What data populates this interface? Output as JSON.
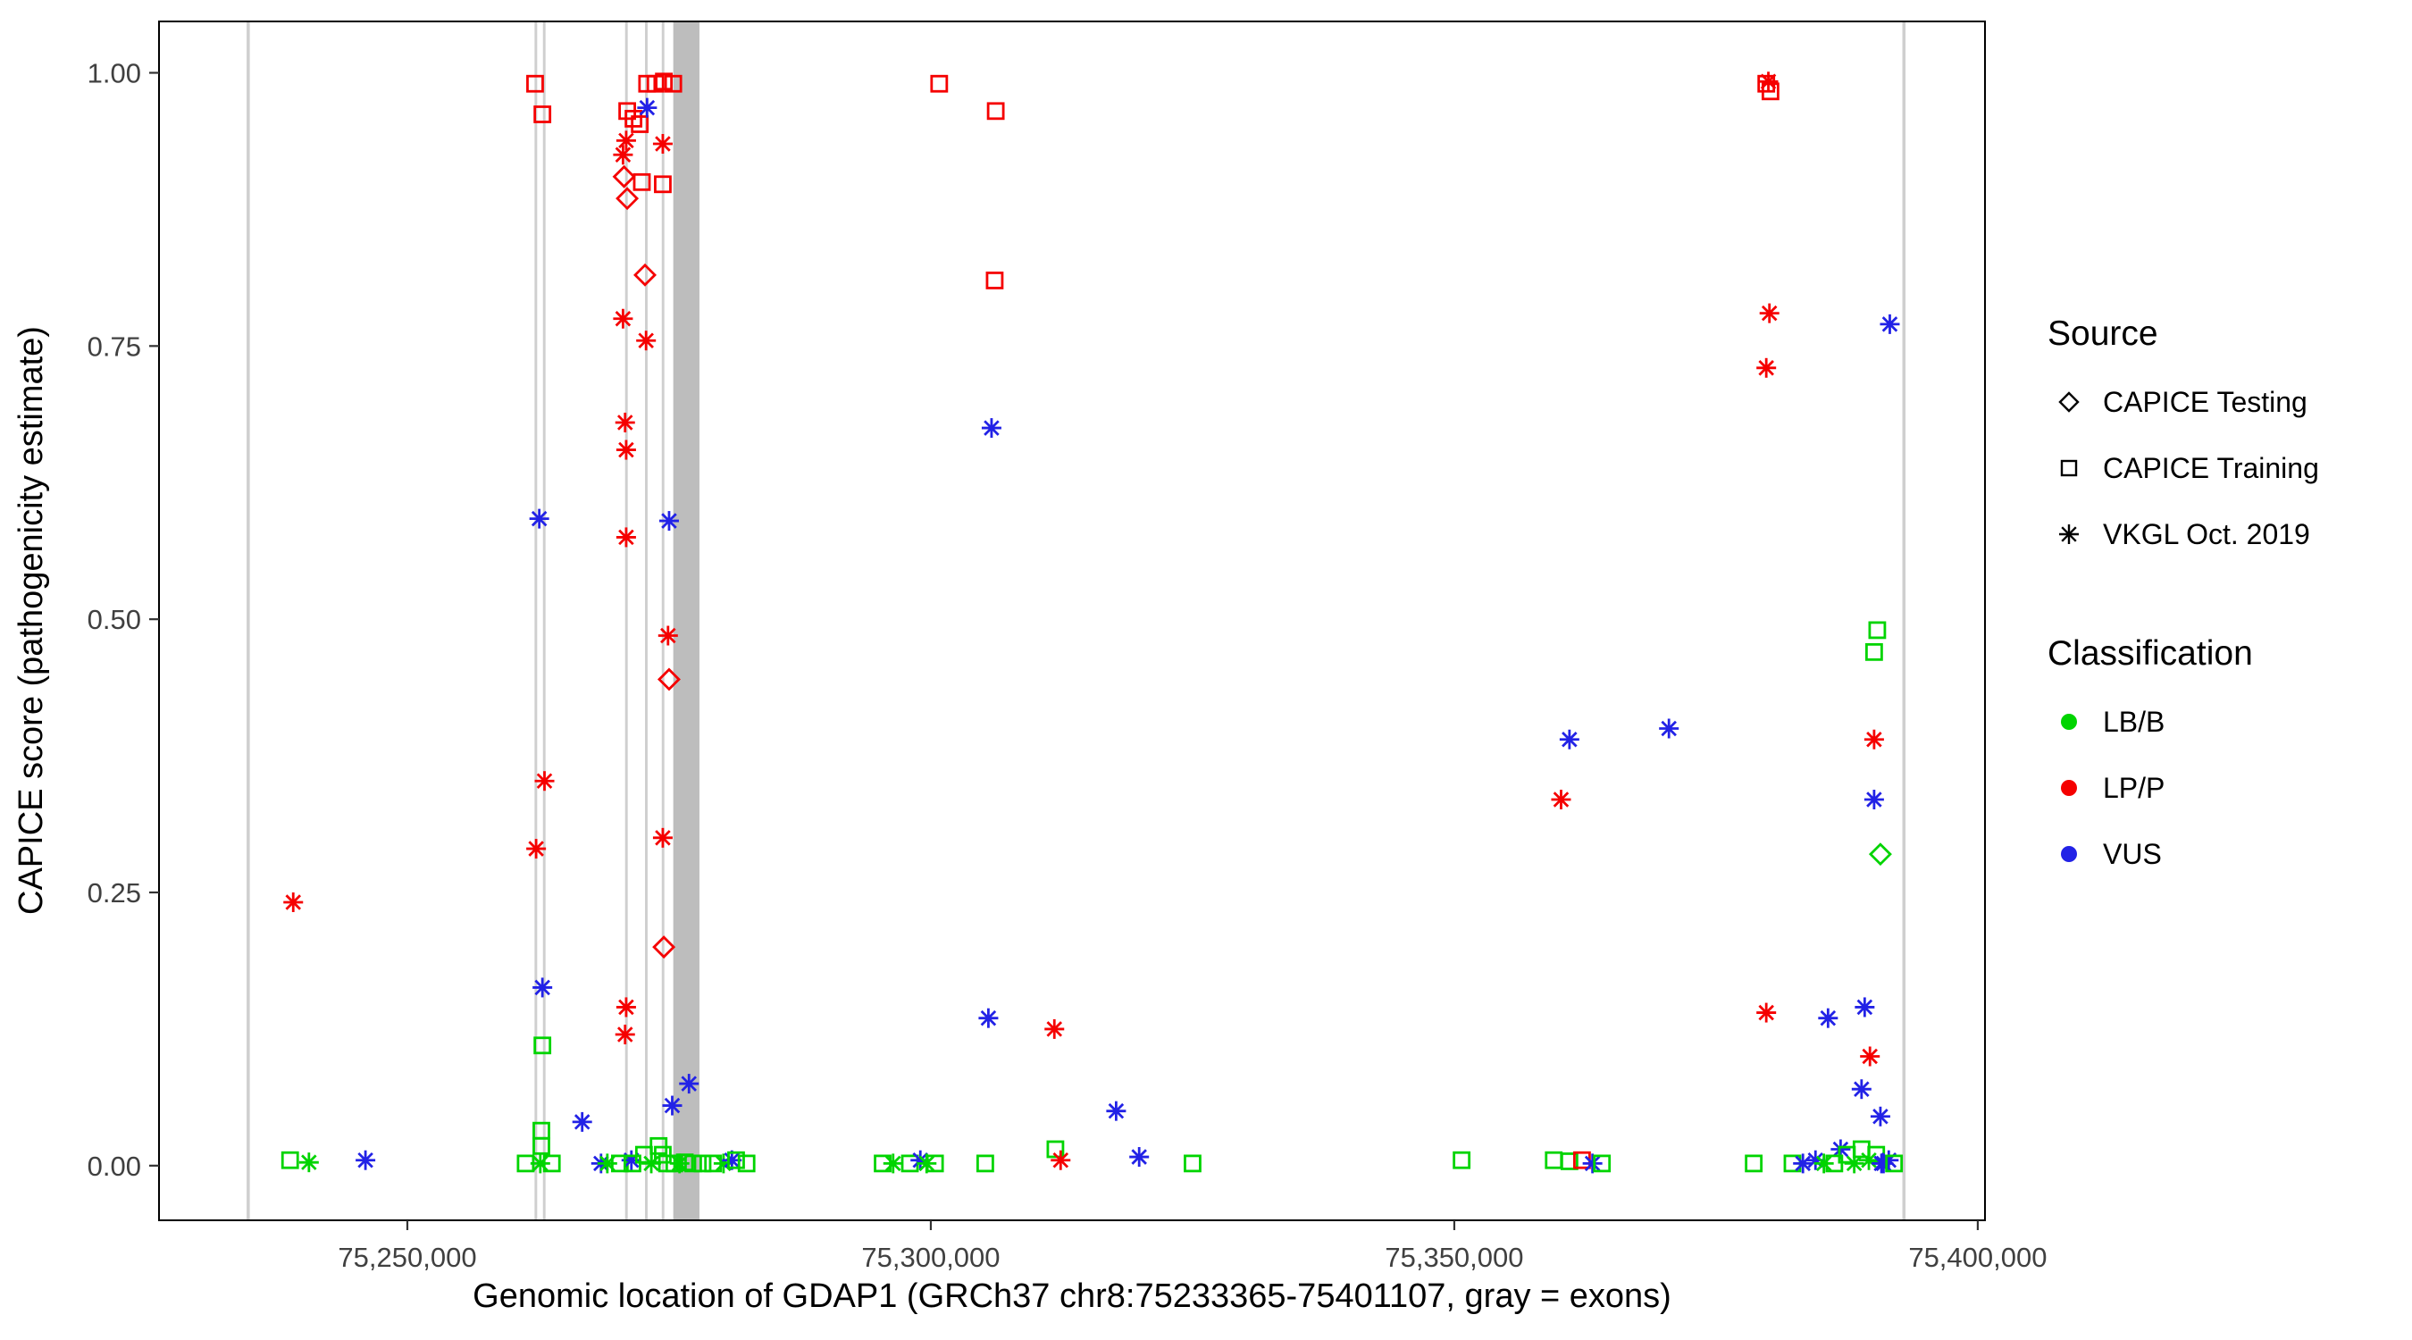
{
  "chart_data": {
    "type": "scatter",
    "xlabel": "Genomic location of GDAP1 (GRCh37 chr8:75233365-75401107, gray = exons)",
    "ylabel": "CAPICE score (pathogenicity estimate)",
    "x_axis": {
      "min": 75226280,
      "max": 75400690,
      "ticks": [
        {
          "value": 75250000,
          "label": "75,250,000"
        },
        {
          "value": 75300000,
          "label": "75,300,000"
        },
        {
          "value": 75350000,
          "label": "75,350,000"
        },
        {
          "value": 75400000,
          "label": "75,400,000"
        }
      ]
    },
    "y_axis": {
      "min": -0.05,
      "max": 1.047,
      "ticks": [
        {
          "value": 0.0,
          "label": "0.00"
        },
        {
          "value": 0.25,
          "label": "0.25"
        },
        {
          "value": 0.5,
          "label": "0.50"
        },
        {
          "value": 0.75,
          "label": "0.75"
        },
        {
          "value": 1.0,
          "label": "1.00"
        }
      ]
    },
    "exons": [
      {
        "start": 75234650,
        "end": 75234950,
        "color": "#CFCFCF"
      },
      {
        "start": 75262150,
        "end": 75262400,
        "color": "#CFCFCF"
      },
      {
        "start": 75262950,
        "end": 75263200,
        "color": "#CFCFCF"
      },
      {
        "start": 75270800,
        "end": 75271050,
        "color": "#CFCFCF"
      },
      {
        "start": 75272700,
        "end": 75272950,
        "color": "#CFCFCF"
      },
      {
        "start": 75274300,
        "end": 75274550,
        "color": "#CFCFCF"
      },
      {
        "start": 75275400,
        "end": 75277900,
        "color": "#BDBDBD"
      },
      {
        "start": 75392800,
        "end": 75393100,
        "color": "#CFCFCF"
      }
    ],
    "series_colors": {
      "lbb": "#00D400",
      "lpp": "#F50000",
      "vus": "#2222E6"
    },
    "marker_shapes": {
      "testing": "diamond",
      "training": "square",
      "vkgl": "asterisk"
    },
    "points_format": [
      "genomic_position",
      "capice_score",
      "source",
      "classification"
    ],
    "points": [
      [
        75238800,
        0.005,
        "training",
        "lbb"
      ],
      [
        75239100,
        0.241,
        "vkgl",
        "lpp"
      ],
      [
        75240600,
        0.003,
        "vkgl",
        "lbb"
      ],
      [
        75246000,
        0.005,
        "vkgl",
        "vus"
      ],
      [
        75261300,
        0.002,
        "training",
        "lbb"
      ],
      [
        75262200,
        0.99,
        "training",
        "lpp"
      ],
      [
        75262900,
        0.962,
        "training",
        "lpp"
      ],
      [
        75262600,
        0.592,
        "vkgl",
        "vus"
      ],
      [
        75263100,
        0.352,
        "vkgl",
        "lpp"
      ],
      [
        75262300,
        0.29,
        "vkgl",
        "lpp"
      ],
      [
        75262900,
        0.163,
        "vkgl",
        "vus"
      ],
      [
        75262900,
        0.11,
        "training",
        "lbb"
      ],
      [
        75262800,
        0.032,
        "training",
        "lbb"
      ],
      [
        75262800,
        0.018,
        "training",
        "lbb"
      ],
      [
        75262700,
        0.002,
        "vkgl",
        "lbb"
      ],
      [
        75263800,
        0.002,
        "training",
        "lbb"
      ],
      [
        75266700,
        0.04,
        "vkgl",
        "vus"
      ],
      [
        75268500,
        0.002,
        "vkgl",
        "vus"
      ],
      [
        75269100,
        0.002,
        "vkgl",
        "lbb"
      ],
      [
        75271000,
        0.965,
        "training",
        "lpp"
      ],
      [
        75271600,
        0.958,
        "training",
        "lpp"
      ],
      [
        75272200,
        0.953,
        "training",
        "lpp"
      ],
      [
        75272900,
        0.99,
        "training",
        "lpp"
      ],
      [
        75273700,
        0.99,
        "training",
        "lpp"
      ],
      [
        75274500,
        0.992,
        "training",
        "lpp"
      ],
      [
        75275400,
        0.99,
        "training",
        "lpp"
      ],
      [
        75272900,
        0.968,
        "vkgl",
        "vus"
      ],
      [
        75270900,
        0.938,
        "vkgl",
        "lpp"
      ],
      [
        75270600,
        0.925,
        "vkgl",
        "lpp"
      ],
      [
        75270700,
        0.905,
        "testing",
        "lpp"
      ],
      [
        75271000,
        0.885,
        "testing",
        "lpp"
      ],
      [
        75272400,
        0.9,
        "training",
        "lpp"
      ],
      [
        75274400,
        0.935,
        "vkgl",
        "lpp"
      ],
      [
        75274400,
        0.898,
        "training",
        "lpp"
      ],
      [
        75272700,
        0.815,
        "testing",
        "lpp"
      ],
      [
        75270600,
        0.775,
        "vkgl",
        "lpp"
      ],
      [
        75272800,
        0.755,
        "vkgl",
        "lpp"
      ],
      [
        75270800,
        0.68,
        "vkgl",
        "lpp"
      ],
      [
        75270900,
        0.655,
        "vkgl",
        "lpp"
      ],
      [
        75275000,
        0.59,
        "vkgl",
        "vus"
      ],
      [
        75270900,
        0.575,
        "vkgl",
        "lpp"
      ],
      [
        75274900,
        0.485,
        "vkgl",
        "lpp"
      ],
      [
        75275000,
        0.445,
        "testing",
        "lpp"
      ],
      [
        75274400,
        0.3,
        "vkgl",
        "lpp"
      ],
      [
        75274500,
        0.2,
        "testing",
        "lpp"
      ],
      [
        75270900,
        0.145,
        "vkgl",
        "lpp"
      ],
      [
        75270800,
        0.12,
        "vkgl",
        "lpp"
      ],
      [
        75275300,
        0.055,
        "vkgl",
        "vus"
      ],
      [
        75276900,
        0.075,
        "vkgl",
        "vus"
      ],
      [
        75270300,
        0.002,
        "training",
        "lbb"
      ],
      [
        75271400,
        0.005,
        "vkgl",
        "vus"
      ],
      [
        75271500,
        0.002,
        "training",
        "lbb"
      ],
      [
        75272600,
        0.01,
        "training",
        "lbb"
      ],
      [
        75273300,
        0.002,
        "vkgl",
        "lbb"
      ],
      [
        75274000,
        0.018,
        "training",
        "lbb"
      ],
      [
        75274400,
        0.01,
        "training",
        "lbb"
      ],
      [
        75274800,
        0.002,
        "training",
        "lbb"
      ],
      [
        75275500,
        0.002,
        "training",
        "lbb"
      ],
      [
        75276000,
        0.002,
        "vkgl",
        "lbb"
      ],
      [
        75276500,
        0.003,
        "training",
        "lbb"
      ],
      [
        75277300,
        0.002,
        "training",
        "lbb"
      ],
      [
        75278200,
        0.002,
        "training",
        "lbb"
      ],
      [
        75279200,
        0.002,
        "training",
        "lbb"
      ],
      [
        75280200,
        0.002,
        "vkgl",
        "lbb"
      ],
      [
        75281000,
        0.005,
        "vkgl",
        "vus"
      ],
      [
        75281400,
        0.005,
        "training",
        "lbb"
      ],
      [
        75282400,
        0.002,
        "training",
        "lbb"
      ],
      [
        75295400,
        0.002,
        "training",
        "lbb"
      ],
      [
        75296400,
        0.002,
        "vkgl",
        "lbb"
      ],
      [
        75298000,
        0.002,
        "training",
        "lbb"
      ],
      [
        75299000,
        0.005,
        "vkgl",
        "vus"
      ],
      [
        75299600,
        0.002,
        "vkgl",
        "lbb"
      ],
      [
        75300400,
        0.002,
        "training",
        "lbb"
      ],
      [
        75300800,
        0.99,
        "training",
        "lpp"
      ],
      [
        75306200,
        0.965,
        "training",
        "lpp"
      ],
      [
        75306100,
        0.81,
        "training",
        "lpp"
      ],
      [
        75305800,
        0.675,
        "vkgl",
        "vus"
      ],
      [
        75305500,
        0.135,
        "vkgl",
        "vus"
      ],
      [
        75305200,
        0.002,
        "training",
        "lbb"
      ],
      [
        75311800,
        0.125,
        "vkgl",
        "lpp"
      ],
      [
        75311900,
        0.015,
        "training",
        "lbb"
      ],
      [
        75312400,
        0.005,
        "vkgl",
        "lpp"
      ],
      [
        75317700,
        0.05,
        "vkgl",
        "vus"
      ],
      [
        75319900,
        0.008,
        "vkgl",
        "vus"
      ],
      [
        75325000,
        0.002,
        "training",
        "lbb"
      ],
      [
        75350700,
        0.005,
        "training",
        "lbb"
      ],
      [
        75359500,
        0.005,
        "training",
        "lbb"
      ],
      [
        75361000,
        0.004,
        "training",
        "lbb"
      ],
      [
        75362200,
        0.005,
        "training",
        "lpp"
      ],
      [
        75361000,
        0.39,
        "vkgl",
        "vus"
      ],
      [
        75360200,
        0.335,
        "vkgl",
        "lpp"
      ],
      [
        75363200,
        0.002,
        "vkgl",
        "vus"
      ],
      [
        75364100,
        0.002,
        "training",
        "lbb"
      ],
      [
        75370500,
        0.4,
        "vkgl",
        "vus"
      ],
      [
        75379800,
        0.99,
        "training",
        "lpp"
      ],
      [
        75380200,
        0.983,
        "training",
        "lpp"
      ],
      [
        75380000,
        0.992,
        "vkgl",
        "lpp"
      ],
      [
        75380100,
        0.78,
        "vkgl",
        "lpp"
      ],
      [
        75379800,
        0.73,
        "vkgl",
        "lpp"
      ],
      [
        75379800,
        0.14,
        "vkgl",
        "lpp"
      ],
      [
        75378600,
        0.002,
        "training",
        "lbb"
      ],
      [
        75382300,
        0.002,
        "training",
        "lbb"
      ],
      [
        75383300,
        0.002,
        "vkgl",
        "vus"
      ],
      [
        75384500,
        0.005,
        "vkgl",
        "vus"
      ],
      [
        75391600,
        0.77,
        "vkgl",
        "vus"
      ],
      [
        75390400,
        0.49,
        "training",
        "lbb"
      ],
      [
        75390100,
        0.47,
        "training",
        "lbb"
      ],
      [
        75390100,
        0.39,
        "vkgl",
        "lpp"
      ],
      [
        75390100,
        0.335,
        "vkgl",
        "vus"
      ],
      [
        75390700,
        0.285,
        "testing",
        "lbb"
      ],
      [
        75385700,
        0.135,
        "vkgl",
        "vus"
      ],
      [
        75389200,
        0.145,
        "vkgl",
        "vus"
      ],
      [
        75388900,
        0.07,
        "vkgl",
        "vus"
      ],
      [
        75389700,
        0.1,
        "vkgl",
        "lpp"
      ],
      [
        75390700,
        0.045,
        "vkgl",
        "vus"
      ],
      [
        75386900,
        0.015,
        "vkgl",
        "vus"
      ],
      [
        75385300,
        0.002,
        "vkgl",
        "lbb"
      ],
      [
        75386300,
        0.002,
        "training",
        "lbb"
      ],
      [
        75387500,
        0.01,
        "training",
        "lbb"
      ],
      [
        75388200,
        0.002,
        "vkgl",
        "lbb"
      ],
      [
        75388900,
        0.015,
        "training",
        "lbb"
      ],
      [
        75389600,
        0.005,
        "vkgl",
        "lbb"
      ],
      [
        75390300,
        0.01,
        "training",
        "lbb"
      ],
      [
        75391000,
        0.002,
        "vkgl",
        "vus"
      ],
      [
        75391500,
        0.005,
        "vkgl",
        "vus"
      ],
      [
        75390800,
        0.002,
        "vkgl",
        "vus"
      ],
      [
        75392000,
        0.002,
        "training",
        "lbb"
      ]
    ]
  },
  "legend": {
    "source": {
      "title": "Source",
      "items": [
        {
          "label": "CAPICE Testing",
          "marker": "diamond"
        },
        {
          "label": "CAPICE Training",
          "marker": "square"
        },
        {
          "label": "VKGL Oct. 2019",
          "marker": "asterisk"
        }
      ]
    },
    "classification": {
      "title": "Classification",
      "items": [
        {
          "label": "LB/B",
          "color_key": "lbb"
        },
        {
          "label": "LP/P",
          "color_key": "lpp"
        },
        {
          "label": "VUS",
          "color_key": "vus"
        }
      ]
    }
  }
}
